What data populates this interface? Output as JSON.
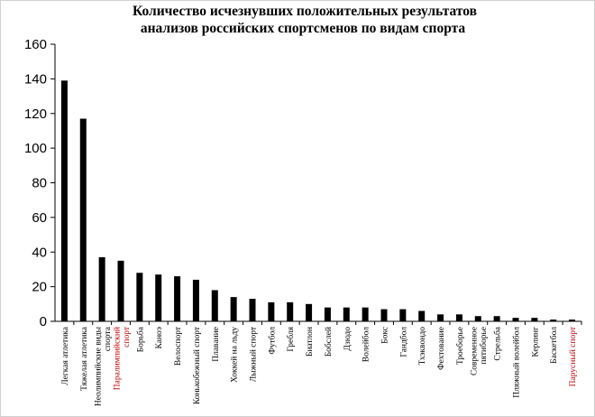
{
  "chart_data": {
    "type": "bar",
    "title": [
      "Количество исчезнувших положительных результатов",
      "анализов российских спортсменов по видам спорта"
    ],
    "xlabel": "",
    "ylabel": "",
    "ylim": [
      0,
      160
    ],
    "yticks": [
      0,
      20,
      40,
      60,
      80,
      100,
      120,
      140,
      160
    ],
    "grid": false,
    "bar_color": "#000000",
    "categories": [
      {
        "label": [
          "Легкая атлетика"
        ],
        "value": 139,
        "color": "#000000"
      },
      {
        "label": [
          "Тяжелая атлетика"
        ],
        "value": 117,
        "color": "#000000"
      },
      {
        "label": [
          "Неолимпийские виды",
          "спорта"
        ],
        "value": 37,
        "color": "#000000"
      },
      {
        "label": [
          "Паралимпийский",
          "спорт"
        ],
        "value": 35,
        "color": "#000000",
        "label_color": "#c00000"
      },
      {
        "label": [
          "Борьба"
        ],
        "value": 28,
        "color": "#000000"
      },
      {
        "label": [
          "Каноэ"
        ],
        "value": 27,
        "color": "#000000"
      },
      {
        "label": [
          "Велоспорт"
        ],
        "value": 26,
        "color": "#000000"
      },
      {
        "label": [
          "Конькобежный спорт"
        ],
        "value": 24,
        "color": "#000000"
      },
      {
        "label": [
          "Плавание"
        ],
        "value": 18,
        "color": "#000000"
      },
      {
        "label": [
          "Хоккей на льду"
        ],
        "value": 14,
        "color": "#000000"
      },
      {
        "label": [
          "Лыжный спорт"
        ],
        "value": 13,
        "color": "#000000"
      },
      {
        "label": [
          "Футбол"
        ],
        "value": 11,
        "color": "#000000"
      },
      {
        "label": [
          "Гребля"
        ],
        "value": 11,
        "color": "#000000"
      },
      {
        "label": [
          "Биатлон"
        ],
        "value": 10,
        "color": "#000000"
      },
      {
        "label": [
          "Бобслей"
        ],
        "value": 8,
        "color": "#000000"
      },
      {
        "label": [
          "Дзюдо"
        ],
        "value": 8,
        "color": "#000000"
      },
      {
        "label": [
          "Волейбол"
        ],
        "value": 8,
        "color": "#000000"
      },
      {
        "label": [
          "Бокс"
        ],
        "value": 7,
        "color": "#000000"
      },
      {
        "label": [
          "Гандбол"
        ],
        "value": 7,
        "color": "#000000"
      },
      {
        "label": [
          "Тхэквондо"
        ],
        "value": 6,
        "color": "#000000"
      },
      {
        "label": [
          "Фехтование"
        ],
        "value": 4,
        "color": "#000000"
      },
      {
        "label": [
          "Троеборье"
        ],
        "value": 4,
        "color": "#000000"
      },
      {
        "label": [
          "Современное",
          "пятиборье"
        ],
        "value": 3,
        "color": "#000000"
      },
      {
        "label": [
          "Стрельба"
        ],
        "value": 3,
        "color": "#000000"
      },
      {
        "label": [
          "Пляжный волейбол"
        ],
        "value": 2,
        "color": "#000000"
      },
      {
        "label": [
          "Керлинг"
        ],
        "value": 2,
        "color": "#000000"
      },
      {
        "label": [
          "Баскетбол"
        ],
        "value": 1,
        "color": "#000000"
      },
      {
        "label": [
          "Парусный спорт"
        ],
        "value": 1,
        "color": "#000000",
        "label_color": "#c00000"
      }
    ]
  }
}
